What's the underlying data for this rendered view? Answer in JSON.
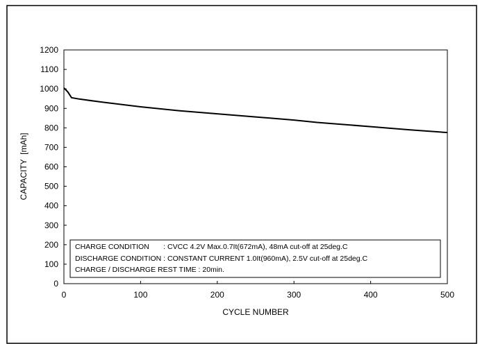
{
  "chart_data": {
    "type": "line",
    "title": "",
    "xlabel": "CYCLE NUMBER",
    "ylabel": "CAPACITY  [mAh]",
    "xlim": [
      0,
      500
    ],
    "ylim": [
      0,
      1200
    ],
    "xticks": [
      0,
      100,
      200,
      300,
      400,
      500
    ],
    "yticks": [
      0,
      100,
      200,
      300,
      400,
      500,
      600,
      700,
      800,
      900,
      1000,
      1100,
      1200
    ],
    "grid": false,
    "series": [
      {
        "color": "#000000",
        "x": [
          0,
          5,
          10,
          20,
          50,
          100,
          150,
          200,
          250,
          300,
          330,
          350,
          400,
          450,
          500
        ],
        "y": [
          1005,
          985,
          955,
          948,
          932,
          908,
          888,
          872,
          856,
          840,
          828,
          822,
          806,
          790,
          776
        ]
      }
    ],
    "annotations": [
      "CHARGE CONDITION       : CVCC 4.2V Max.0.7It(672mA), 48mA cut-off at 25deg.C",
      "DISCHARGE CONDITION : CONSTANT CURRENT 1.0It(960mA), 2.5V cut-off at 25deg.C",
      "CHARGE / DISCHARGE REST TIME : 20min."
    ]
  }
}
